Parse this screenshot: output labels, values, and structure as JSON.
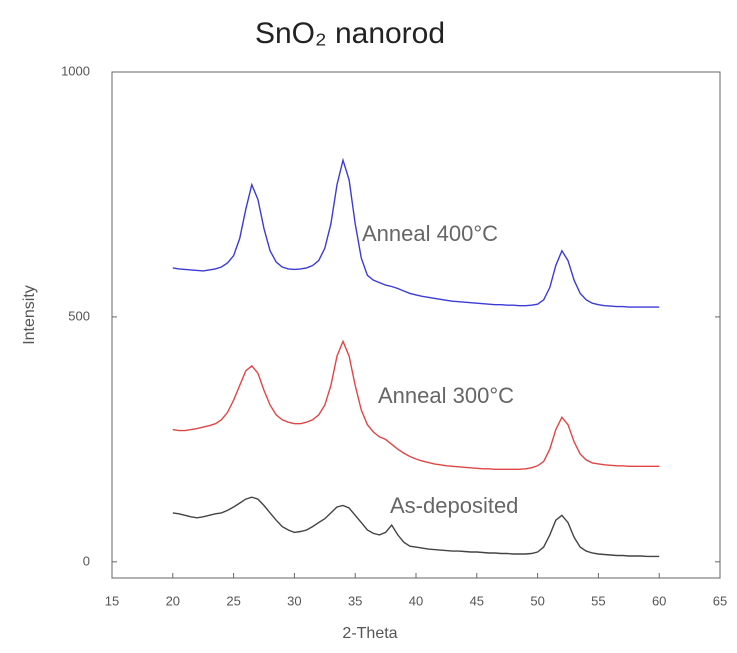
{
  "chart_data": {
    "type": "line",
    "title": "SnO₂ nanorod",
    "x_label": "2-Theta",
    "y_label": "Intensity",
    "xlim": [
      15,
      65
    ],
    "xticks": [
      15,
      20,
      25,
      30,
      35,
      40,
      45,
      50,
      55,
      60,
      65
    ],
    "ylim": [
      -33,
      1000
    ],
    "yticks": [
      0,
      500,
      1000
    ],
    "grid": false,
    "x": [
      20,
      20.5,
      21,
      21.5,
      22,
      22.5,
      23,
      23.5,
      24,
      24.5,
      25,
      25.5,
      26,
      26.5,
      27,
      27.5,
      28,
      28.5,
      29,
      29.5,
      30,
      30.5,
      31,
      31.5,
      32,
      32.5,
      33,
      33.5,
      34,
      34.5,
      35,
      35.5,
      36,
      36.5,
      37,
      37.5,
      38,
      38.5,
      39,
      39.5,
      40,
      40.5,
      41,
      41.5,
      42,
      42.5,
      43,
      43.5,
      44,
      44.5,
      45,
      45.5,
      46,
      46.5,
      47,
      47.5,
      48,
      48.5,
      49,
      49.5,
      50,
      50.5,
      51,
      51.5,
      52,
      52.5,
      53,
      53.5,
      54,
      54.5,
      55,
      55.5,
      56,
      56.5,
      57,
      57.5,
      58,
      58.5,
      59,
      59.5,
      60
    ],
    "series": [
      {
        "name": "Anneal 400°C",
        "color": "#3b3bd6",
        "values": [
          600,
          598,
          597,
          596,
          595,
          594,
          596,
          598,
          602,
          610,
          625,
          660,
          720,
          770,
          740,
          680,
          635,
          612,
          602,
          598,
          597,
          598,
          600,
          605,
          615,
          640,
          690,
          770,
          820,
          780,
          690,
          620,
          585,
          575,
          570,
          565,
          562,
          558,
          553,
          548,
          545,
          542,
          540,
          538,
          536,
          534,
          532,
          531,
          530,
          529,
          528,
          527,
          526,
          525,
          525,
          524,
          524,
          523,
          523,
          524,
          526,
          535,
          560,
          605,
          635,
          615,
          575,
          548,
          535,
          528,
          525,
          523,
          522,
          521,
          521,
          520,
          520,
          520,
          520,
          520,
          520
        ]
      },
      {
        "name": "Anneal 300°C",
        "color": "#e04646",
        "values": [
          270,
          268,
          268,
          270,
          272,
          275,
          278,
          282,
          290,
          305,
          330,
          360,
          390,
          400,
          385,
          350,
          320,
          300,
          290,
          285,
          282,
          282,
          285,
          290,
          300,
          320,
          360,
          420,
          450,
          420,
          360,
          310,
          280,
          265,
          255,
          250,
          240,
          230,
          222,
          215,
          210,
          206,
          203,
          200,
          198,
          196,
          195,
          194,
          193,
          192,
          191,
          190,
          190,
          189,
          189,
          189,
          189,
          189,
          190,
          192,
          196,
          205,
          230,
          270,
          295,
          280,
          245,
          220,
          208,
          202,
          200,
          198,
          197,
          196,
          196,
          195,
          195,
          195,
          195,
          195,
          195
        ]
      },
      {
        "name": "As-deposited",
        "color": "#444444",
        "values": [
          100,
          98,
          95,
          92,
          90,
          92,
          95,
          98,
          100,
          105,
          112,
          120,
          128,
          132,
          128,
          115,
          100,
          85,
          72,
          65,
          60,
          62,
          65,
          72,
          80,
          88,
          100,
          112,
          115,
          110,
          95,
          80,
          65,
          58,
          55,
          60,
          75,
          55,
          40,
          32,
          30,
          28,
          26,
          25,
          24,
          23,
          22,
          22,
          21,
          20,
          20,
          19,
          18,
          18,
          17,
          17,
          16,
          16,
          16,
          17,
          20,
          30,
          55,
          85,
          95,
          80,
          50,
          30,
          22,
          18,
          16,
          15,
          14,
          13,
          13,
          12,
          12,
          12,
          11,
          11,
          11
        ]
      }
    ]
  }
}
